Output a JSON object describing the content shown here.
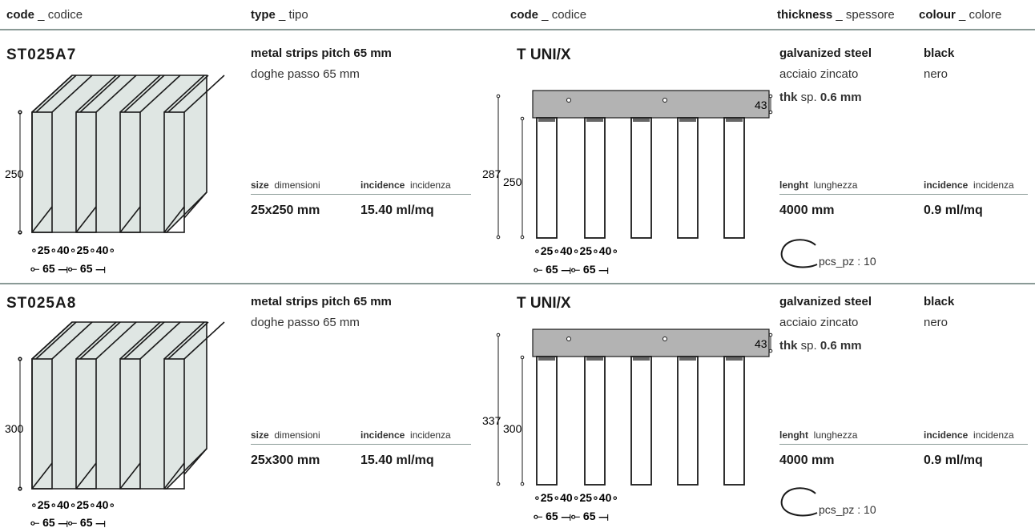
{
  "headers": [
    {
      "main": "code",
      "sep": " _ ",
      "local": "codice"
    },
    {
      "main": "type",
      "sep": " _ ",
      "local": "tipo"
    },
    {
      "main": "code",
      "sep": " _ ",
      "local": "codice"
    },
    {
      "main": "thickness",
      "sep": " _ ",
      "local": "spessore"
    },
    {
      "main": "colour",
      "sep": " _ ",
      "local": "colore"
    }
  ],
  "rows": [
    {
      "code": "ST025A7",
      "type_en": "metal strips pitch 65 mm",
      "type_it": "doghe passo 65 mm",
      "size_label": "size",
      "size_label_it": "dimensioni",
      "incidence_label": "incidence",
      "incidence_label_it": "incidenza",
      "size_value": "25x250 mm",
      "incidence_value": "15.40 ml/mq",
      "profile_code": "T UNI/X",
      "material_en": "galvanized steel",
      "material_it": "acciaio zincato",
      "thk_label": "thk",
      "thk_label_it": "sp.",
      "thk_value": "0.6 mm",
      "colour_en": "black",
      "colour_it": "nero",
      "length_label": "lenght",
      "length_label_it": "lunghezza",
      "incidence2_label": "incidence",
      "incidence2_label_it": "incidenza",
      "length_value": "4000 mm",
      "incidence2_value": "0.9 ml/mq",
      "pcs": "pcs_pz : 10",
      "dim_height": "250",
      "dim_total": "287",
      "dim_top": "43",
      "dim_w1": "25",
      "dim_w2": "40",
      "dim_pitch": "65"
    },
    {
      "code": "ST025A8",
      "type_en": "metal strips pitch 65 mm",
      "type_it": "doghe passo 65 mm",
      "size_label": "size",
      "size_label_it": "dimensioni",
      "incidence_label": "incidence",
      "incidence_label_it": "incidenza",
      "size_value": "25x300 mm",
      "incidence_value": "15.40 ml/mq",
      "profile_code": "T UNI/X",
      "material_en": "galvanized steel",
      "material_it": "acciaio zincato",
      "thk_label": "thk",
      "thk_label_it": "sp.",
      "thk_value": "0.6 mm",
      "colour_en": "black",
      "colour_it": "nero",
      "length_label": "lenght",
      "length_label_it": "lunghezza",
      "incidence2_label": "incidence",
      "incidence2_label_it": "incidenza",
      "length_value": "4000 mm",
      "incidence2_value": "0.9 ml/mq",
      "pcs": "pcs_pz : 10",
      "dim_height": "300",
      "dim_total": "337",
      "dim_top": "43",
      "dim_w1": "25",
      "dim_w2": "40",
      "dim_pitch": "65"
    }
  ],
  "colors": {
    "rule": "#8a9a96",
    "panel": "#dfe6e3",
    "carrier": "#b3b3b3"
  }
}
